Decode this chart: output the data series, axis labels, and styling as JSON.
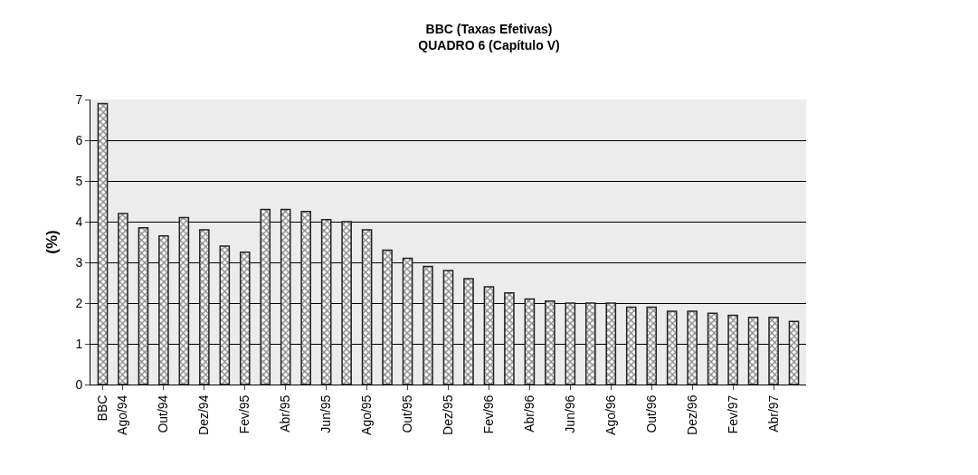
{
  "chart_data": {
    "type": "bar",
    "title": "BBC (Taxas Efetivas)",
    "subtitle": "QUADRO 6 (Capítulo V)",
    "ylabel": "(%)",
    "categories": [
      "BBC",
      "Ago/94",
      null,
      "Out/94",
      null,
      "Dez/94",
      null,
      "Fev/95",
      null,
      "Abr/95",
      null,
      "Jun/95",
      null,
      "Ago/95",
      null,
      "Out/95",
      null,
      "Dez/95",
      null,
      "Fev/96",
      null,
      "Abr/96",
      null,
      "Jun/96",
      null,
      "Ago/96",
      null,
      "Out/96",
      null,
      "Dez/96",
      null,
      "Fev/97",
      null,
      "Abr/97",
      null
    ],
    "values": [
      6.9,
      4.2,
      3.85,
      3.65,
      4.1,
      3.8,
      3.4,
      3.25,
      4.3,
      4.3,
      4.25,
      4.05,
      4.0,
      3.8,
      3.3,
      3.1,
      2.9,
      2.8,
      2.6,
      2.4,
      2.25,
      2.1,
      2.05,
      2.0,
      2.0,
      2.0,
      1.9,
      1.9,
      1.8,
      1.8,
      1.75,
      1.7,
      1.65,
      1.65,
      1.55
    ],
    "color": "#222222",
    "ylim": [
      0,
      7
    ],
    "yticks": [
      0,
      1,
      2,
      3,
      4,
      5,
      6,
      7
    ],
    "grid": "y",
    "legend": false
  }
}
